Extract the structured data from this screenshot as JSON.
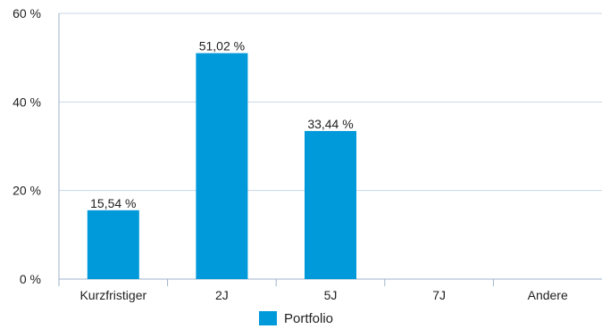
{
  "chart_data": {
    "type": "bar",
    "categories": [
      "Kurzfristiger",
      "2J",
      "5J",
      "7J",
      "Andere"
    ],
    "series": [
      {
        "name": "Portfolio",
        "values": [
          15.54,
          51.02,
          33.44,
          null,
          null
        ],
        "value_labels": [
          "15,54 %",
          "51,02 %",
          "33,44 %",
          "",
          ""
        ],
        "color": "#0099da"
      }
    ],
    "yticks": [
      {
        "value": 0,
        "label": "0 %"
      },
      {
        "value": 20,
        "label": "20 %"
      },
      {
        "value": 40,
        "label": "40 %"
      },
      {
        "value": 60,
        "label": "60 %"
      }
    ],
    "ylim": [
      0,
      60
    ],
    "grid": true,
    "grid_color": "#c9d7e6",
    "axis_color": "#9fb3c8",
    "legend": "bottom-center"
  }
}
